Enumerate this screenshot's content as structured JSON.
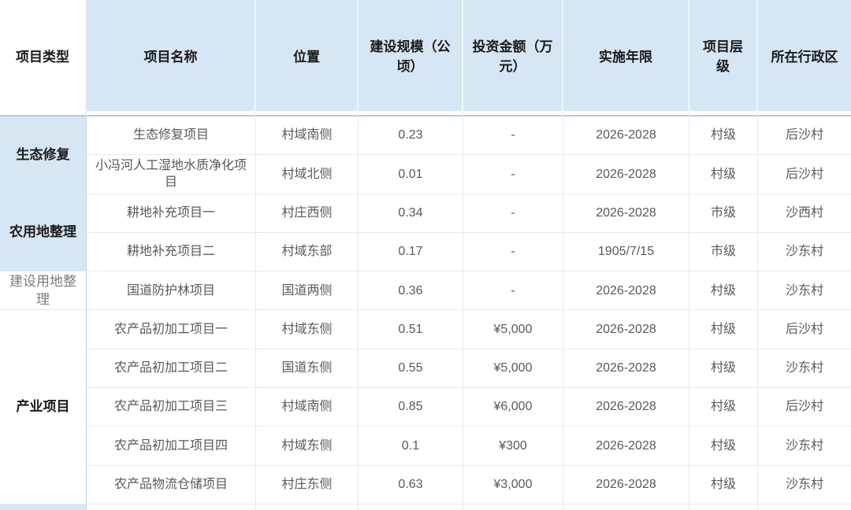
{
  "table": {
    "columns": [
      {
        "key": "type",
        "label": "项目类型"
      },
      {
        "key": "name",
        "label": "项目名称"
      },
      {
        "key": "location",
        "label": "位置"
      },
      {
        "key": "scale",
        "label": "建设规模（公顷）"
      },
      {
        "key": "investment",
        "label": "投资金额（万元）"
      },
      {
        "key": "years",
        "label": "实施年限"
      },
      {
        "key": "level",
        "label": "项目层级"
      },
      {
        "key": "district",
        "label": "所在行政区"
      }
    ],
    "groups": [
      {
        "label": "生态修复",
        "rows": 2,
        "highlight": true,
        "bold": true
      },
      {
        "label": "农用地整理",
        "rows": 2,
        "highlight": true,
        "bold": true
      },
      {
        "label": "建设用地整理",
        "rows": 1,
        "highlight": false,
        "bold": false
      },
      {
        "label": "产业项目",
        "rows": 5,
        "highlight": false,
        "bold": true
      }
    ],
    "rows": [
      {
        "group": 0,
        "name": "生态修复项目",
        "location": "村域南侧",
        "scale": "0.23",
        "investment": "-",
        "years": "2026-2028",
        "level": "村级",
        "district": "后沙村"
      },
      {
        "group": 0,
        "name": "小冯河人工湿地水质净化项目",
        "location": "村域北侧",
        "scale": "0.01",
        "investment": "-",
        "years": "2026-2028",
        "level": "村级",
        "district": "后沙村"
      },
      {
        "group": 1,
        "name": "耕地补充项目一",
        "location": "村庄西侧",
        "scale": "0.34",
        "investment": "-",
        "years": "2026-2028",
        "level": "市级",
        "district": "沙西村"
      },
      {
        "group": 1,
        "name": "耕地补充项目二",
        "location": "村域东部",
        "scale": "0.17",
        "investment": "-",
        "years": "1905/7/15",
        "level": "市级",
        "district": "沙东村"
      },
      {
        "group": 2,
        "name": "国道防护林项目",
        "location": "国道两侧",
        "scale": "0.36",
        "investment": "-",
        "years": "2026-2028",
        "level": "村级",
        "district": "沙东村"
      },
      {
        "group": 3,
        "name": "农产品初加工项目一",
        "location": "村域东侧",
        "scale": "0.51",
        "investment": "¥5,000",
        "years": "2026-2028",
        "level": "村级",
        "district": "后沙村"
      },
      {
        "group": 3,
        "name": "农产品初加工项目二",
        "location": "国道东侧",
        "scale": "0.55",
        "investment": "¥5,000",
        "years": "2026-2028",
        "level": "村级",
        "district": "沙东村"
      },
      {
        "group": 3,
        "name": "农产品初加工项目三",
        "location": "村域南侧",
        "scale": "0.85",
        "investment": "¥6,000",
        "years": "2026-2028",
        "level": "村级",
        "district": "后沙村"
      },
      {
        "group": 3,
        "name": "农产品初加工项目四",
        "location": "村域东侧",
        "scale": "0.1",
        "investment": "¥300",
        "years": "2026-2028",
        "level": "村级",
        "district": "沙东村"
      },
      {
        "group": 3,
        "name": "农产品物流仓储项目",
        "location": "村庄东侧",
        "scale": "0.63",
        "investment": "¥3,000",
        "years": "2026-2028",
        "level": "村级",
        "district": "沙东村"
      }
    ],
    "colors": {
      "header_bg": "#d7e6f4",
      "group_highlight_bg": "#d7e6f4",
      "body_bg": "#ffffff",
      "border_light": "#e3e9f0",
      "border_strong": "#b6cbde",
      "border_blue": "#b9d4ea",
      "header_text": "#1a1a1a",
      "body_text": "#595959",
      "muted_group_text": "#7b7b7b"
    }
  }
}
